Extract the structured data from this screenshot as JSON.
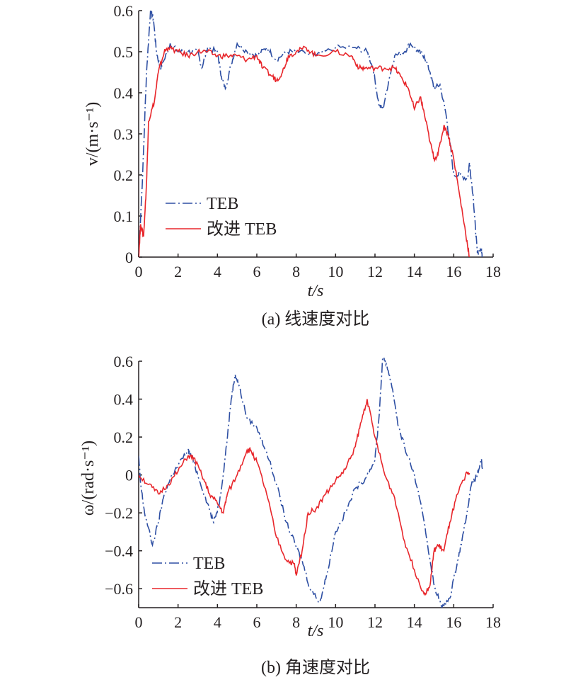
{
  "chart_data": [
    {
      "type": "line",
      "caption": "(a) 线速度对比",
      "xlabel": "t/s",
      "ylabel": "v/(m·s⁻¹)",
      "xlim": [
        0,
        18
      ],
      "ylim": [
        0,
        0.6
      ],
      "xticks": [
        "0",
        "2",
        "4",
        "6",
        "8",
        "10",
        "12",
        "14",
        "16",
        "18"
      ],
      "yticks": [
        "0",
        "0.1",
        "0.2",
        "0.3",
        "0.4",
        "0.5",
        "0.6"
      ],
      "legend_position": "lower-left",
      "series": [
        {
          "name": "TEB",
          "color": "#2e4fa3",
          "style": "dash-dot",
          "x": [
            0,
            0.2,
            0.4,
            0.6,
            0.75,
            0.9,
            1.1,
            1.3,
            1.6,
            2,
            2.5,
            3,
            3.2,
            3.5,
            4,
            4.2,
            4.4,
            4.7,
            5,
            5.5,
            6,
            6.5,
            7,
            7.5,
            8,
            9,
            10,
            11,
            11.6,
            11.9,
            12.2,
            12.4,
            12.7,
            13,
            13.5,
            13.8,
            14.2,
            14.5,
            14.8,
            15,
            15.3,
            15.6,
            15.8,
            16,
            16.3,
            16.7,
            16.8,
            17,
            17.1,
            17.2,
            17.4,
            17.45
          ],
          "y": [
            0,
            0.2,
            0.45,
            0.6,
            0.58,
            0.5,
            0.46,
            0.48,
            0.52,
            0.5,
            0.5,
            0.5,
            0.46,
            0.51,
            0.5,
            0.44,
            0.41,
            0.47,
            0.52,
            0.5,
            0.49,
            0.51,
            0.48,
            0.5,
            0.5,
            0.49,
            0.51,
            0.51,
            0.5,
            0.46,
            0.37,
            0.36,
            0.43,
            0.49,
            0.5,
            0.52,
            0.5,
            0.49,
            0.45,
            0.41,
            0.42,
            0.35,
            0.28,
            0.2,
            0.2,
            0.19,
            0.23,
            0.14,
            0.07,
            0.01,
            0.02,
            0
          ]
        },
        {
          "name": "改进 TEB",
          "color": "#e8262b",
          "style": "solid",
          "x": [
            0,
            0.1,
            0.25,
            0.4,
            0.5,
            0.8,
            1,
            1.3,
            1.5,
            2,
            2.5,
            3,
            3.5,
            4,
            4.5,
            5,
            5.5,
            6,
            6.3,
            6.8,
            7,
            7.3,
            7.6,
            8,
            8.5,
            9,
            10,
            10.8,
            11.2,
            11.5,
            12,
            12.5,
            13,
            13.3,
            13.7,
            14,
            14.3,
            14.5,
            14.8,
            15,
            15.2,
            15.5,
            15.7,
            16,
            16.3,
            16.6,
            16.8
          ],
          "y": [
            0,
            0.08,
            0.05,
            0.18,
            0.33,
            0.38,
            0.45,
            0.5,
            0.51,
            0.5,
            0.49,
            0.5,
            0.5,
            0.49,
            0.49,
            0.49,
            0.48,
            0.49,
            0.46,
            0.44,
            0.43,
            0.45,
            0.49,
            0.5,
            0.51,
            0.49,
            0.5,
            0.49,
            0.46,
            0.46,
            0.46,
            0.46,
            0.46,
            0.44,
            0.41,
            0.36,
            0.39,
            0.35,
            0.28,
            0.24,
            0.25,
            0.32,
            0.3,
            0.24,
            0.15,
            0.06,
            0
          ]
        }
      ]
    },
    {
      "type": "line",
      "caption": "(b) 角速度对比",
      "xlabel": "t/s",
      "ylabel": "ω/(rad·s⁻¹)",
      "xlim": [
        0,
        18
      ],
      "ylim": [
        -0.7,
        0.6
      ],
      "xticks": [
        "0",
        "2",
        "4",
        "6",
        "8",
        "10",
        "12",
        "14",
        "16",
        "18"
      ],
      "yticks": [
        "−0.6",
        "−0.4",
        "−0.2",
        "0",
        "0.2",
        "0.4",
        "0.6"
      ],
      "legend_position": "lower-left",
      "series": [
        {
          "name": "TEB",
          "color": "#2e4fa3",
          "style": "dash-dot",
          "x": [
            0,
            0.1,
            0.3,
            0.7,
            1,
            1.3,
            1.7,
            2,
            2.5,
            2.7,
            3,
            3.5,
            3.8,
            4.1,
            4.4,
            4.7,
            4.9,
            5.1,
            5.5,
            6,
            6.5,
            7,
            7.5,
            8,
            8.3,
            8.7,
            9.2,
            9.5,
            10,
            10.5,
            11,
            11.5,
            12,
            12.2,
            12.4,
            12.6,
            12.9,
            13.2,
            13.5,
            14,
            14.5,
            14.8,
            15,
            15.4,
            15.8,
            16.2,
            16.5,
            16.9,
            17.2,
            17.4,
            17.45
          ],
          "y": [
            0.1,
            -0.05,
            -0.2,
            -0.37,
            -0.25,
            -0.1,
            0,
            0.05,
            0.13,
            0.1,
            0,
            -0.15,
            -0.25,
            -0.15,
            0.1,
            0.4,
            0.53,
            0.47,
            0.3,
            0.25,
            0.12,
            -0.05,
            -0.25,
            -0.38,
            -0.45,
            -0.6,
            -0.67,
            -0.55,
            -0.3,
            -0.2,
            -0.07,
            -0.02,
            0.08,
            0.3,
            0.63,
            0.58,
            0.45,
            0.25,
            0.15,
            0,
            -0.25,
            -0.45,
            -0.58,
            -0.7,
            -0.65,
            -0.45,
            -0.3,
            -0.05,
            0,
            0.08,
            0.03
          ]
        },
        {
          "name": "改进 TEB",
          "color": "#e8262b",
          "style": "solid",
          "x": [
            0,
            0.5,
            1,
            1.5,
            2,
            2.5,
            2.8,
            3.2,
            3.6,
            4,
            4.3,
            4.5,
            5,
            5.5,
            5.7,
            6,
            6.5,
            7,
            7.5,
            7.9,
            8,
            8.3,
            8.6,
            9,
            9.5,
            10,
            10.5,
            11,
            11.3,
            11.6,
            12,
            12.5,
            13,
            13.5,
            14,
            14.5,
            14.8,
            15,
            15.2,
            15.5,
            15.8,
            16.2,
            16.6,
            16.8
          ],
          "y": [
            0,
            -0.05,
            -0.1,
            -0.05,
            0.02,
            0.1,
            0.09,
            0,
            -0.1,
            -0.15,
            -0.2,
            -0.1,
            0,
            0.13,
            0.13,
            0.07,
            -0.1,
            -0.33,
            -0.45,
            -0.47,
            -0.53,
            -0.4,
            -0.2,
            -0.18,
            -0.1,
            -0.03,
            0.03,
            0.15,
            0.28,
            0.4,
            0.2,
            0,
            -0.12,
            -0.35,
            -0.5,
            -0.63,
            -0.58,
            -0.4,
            -0.37,
            -0.4,
            -0.25,
            -0.1,
            0,
            0.01
          ]
        }
      ]
    }
  ]
}
